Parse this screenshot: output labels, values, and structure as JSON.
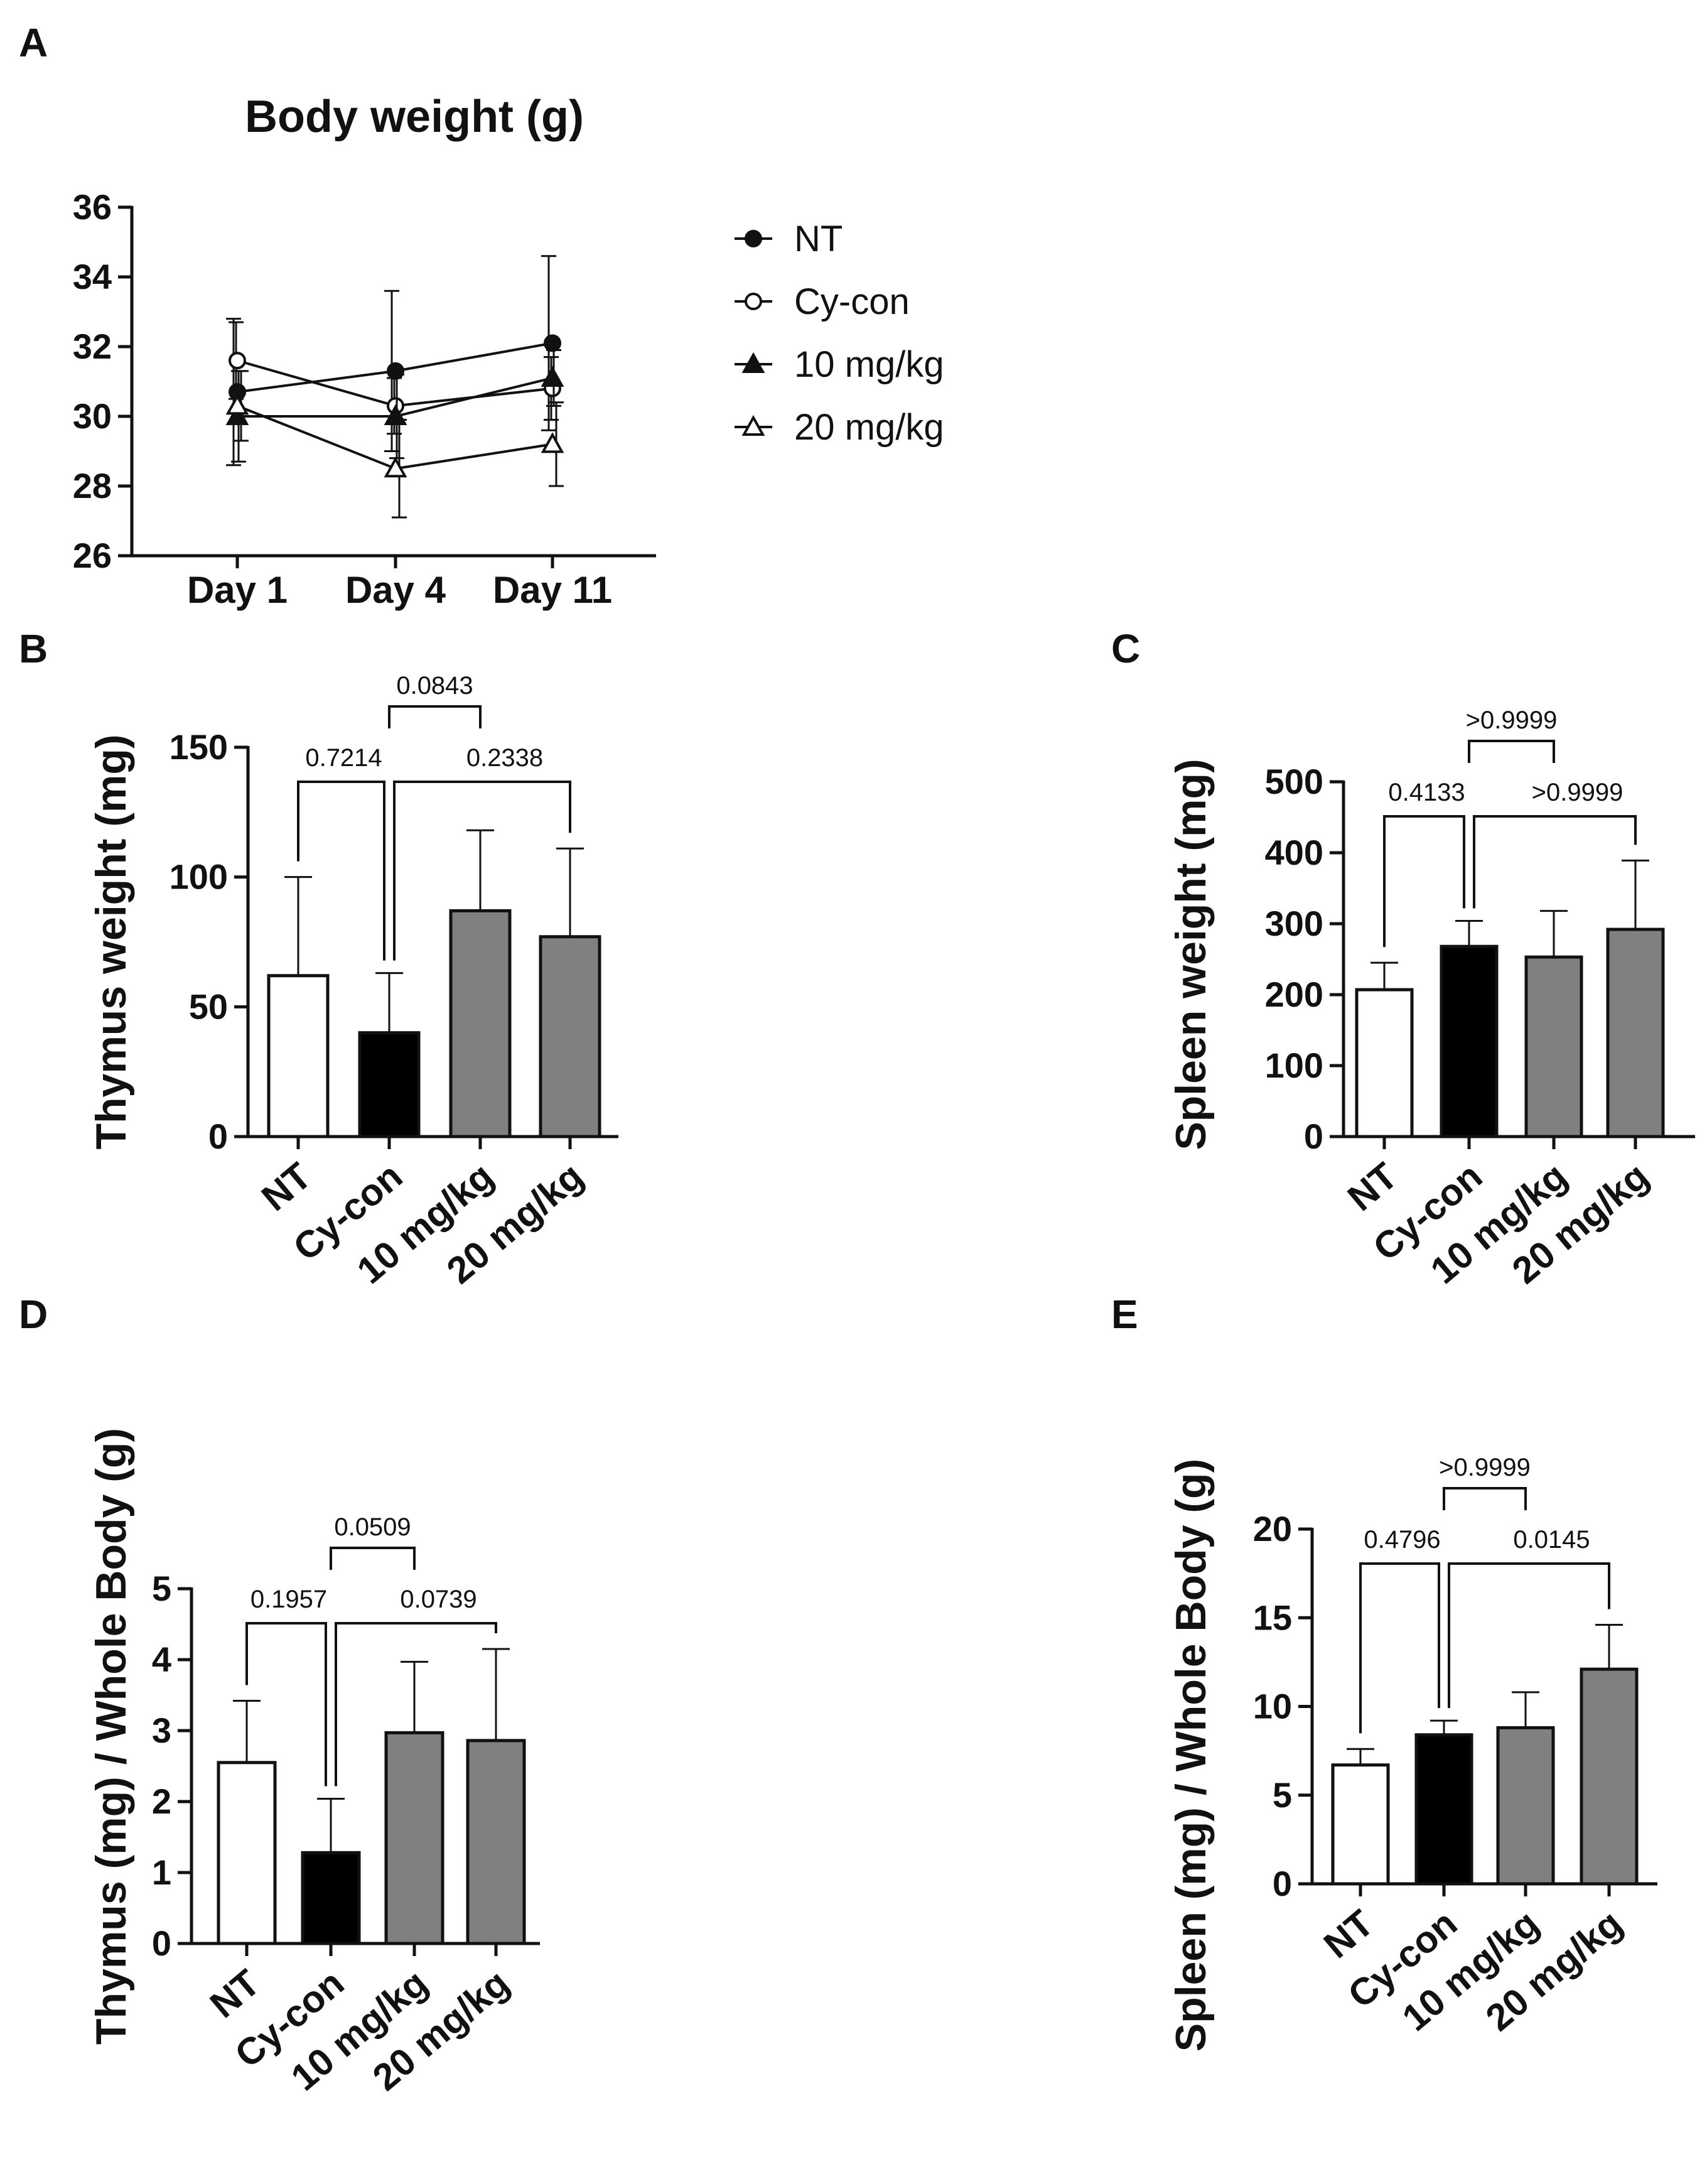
{
  "chart_data": [
    {
      "panel": "A",
      "type": "line",
      "title": "Body weight (g)",
      "xlabel": "",
      "ylabel": "",
      "categories": [
        "Day 1",
        "Day 4",
        "Day 11"
      ],
      "ylim": [
        26,
        36
      ],
      "yticks": [
        "26",
        "28",
        "30",
        "32",
        "34",
        "36"
      ],
      "legend_placement": "right",
      "series": [
        {
          "name": "NT",
          "marker": "filled-circle",
          "values": [
            30.7,
            31.3,
            32.1
          ],
          "errors": [
            2.1,
            2.3,
            2.5
          ]
        },
        {
          "name": "Cy-con",
          "marker": "open-circle",
          "values": [
            31.6,
            30.3,
            30.8
          ],
          "errors": [
            1.1,
            0.8,
            0.9
          ]
        },
        {
          "name": "10 mg/kg",
          "marker": "filled-triangle",
          "values": [
            30.0,
            30.0,
            31.1
          ],
          "errors": [
            1.3,
            1.2,
            0.8
          ]
        },
        {
          "name": "20 mg/kg",
          "marker": "open-triangle",
          "values": [
            30.3,
            28.5,
            29.2
          ],
          "errors": [
            1.0,
            1.4,
            1.2
          ]
        }
      ]
    },
    {
      "panel": "B",
      "type": "bar",
      "xlabel": "",
      "ylabel": "Thymus weight (mg)",
      "categories": [
        "NT",
        "Cy-con",
        "10 mg/kg",
        "20 mg/kg"
      ],
      "values": [
        62,
        40,
        87,
        77
      ],
      "errors": [
        38,
        23,
        31,
        34
      ],
      "ylim": [
        0,
        150
      ],
      "yticks": [
        "0",
        "50",
        "100",
        "150"
      ],
      "bar_colors": [
        "#ffffff",
        "#000000",
        "#808080",
        "#808080"
      ],
      "comparisons": [
        {
          "pair": [
            1,
            3
          ],
          "label": "0.0843"
        },
        {
          "pair": [
            0,
            1
          ],
          "label": "0.7214"
        },
        {
          "pair": [
            1,
            3
          ],
          "label": "0.2338"
        }
      ]
    },
    {
      "panel": "C",
      "type": "bar",
      "xlabel": "",
      "ylabel": "Spleen weight (mg)",
      "categories": [
        "NT",
        "Cy-con",
        "10 mg/kg",
        "20 mg/kg"
      ],
      "values": [
        207,
        268,
        253,
        292
      ],
      "errors": [
        38,
        36,
        65,
        97
      ],
      "ylim": [
        0,
        500
      ],
      "yticks": [
        "0",
        "100",
        "200",
        "300",
        "400",
        "500"
      ],
      "bar_colors": [
        "#ffffff",
        "#000000",
        "#808080",
        "#808080"
      ],
      "comparisons": [
        {
          "pair": [
            1,
            2
          ],
          "label": ">0.9999"
        },
        {
          "pair": [
            0,
            1
          ],
          "label": "0.4133"
        },
        {
          "pair": [
            1,
            3
          ],
          "label": ">0.9999"
        }
      ]
    },
    {
      "panel": "D",
      "type": "bar",
      "xlabel": "",
      "ylabel": "Thymus (mg) / Whole Body (g)",
      "categories": [
        "NT",
        "Cy-con",
        "10 mg/kg",
        "20 mg/kg"
      ],
      "values": [
        2.55,
        1.28,
        2.97,
        2.86
      ],
      "errors": [
        0.87,
        0.76,
        1.0,
        1.29
      ],
      "ylim": [
        0,
        5
      ],
      "yticks": [
        "0",
        "1",
        "2",
        "3",
        "4",
        "5"
      ],
      "bar_colors": [
        "#ffffff",
        "#000000",
        "#808080",
        "#808080"
      ],
      "comparisons": [
        {
          "pair": [
            1,
            2
          ],
          "label": "0.0509"
        },
        {
          "pair": [
            0,
            1
          ],
          "label": "0.1957"
        },
        {
          "pair": [
            1,
            3
          ],
          "label": "0.0739"
        }
      ]
    },
    {
      "panel": "E",
      "type": "bar",
      "xlabel": "",
      "ylabel": "Spleen (mg) / Whole Body (g)",
      "categories": [
        "NT",
        "Cy-con",
        "10 mg/kg",
        "20 mg/kg"
      ],
      "values": [
        6.7,
        8.4,
        8.8,
        12.1
      ],
      "errors": [
        0.9,
        0.8,
        2.0,
        2.5
      ],
      "ylim": [
        0,
        20
      ],
      "yticks": [
        "0",
        "5",
        "10",
        "15",
        "20"
      ],
      "bar_colors": [
        "#ffffff",
        "#000000",
        "#808080",
        "#808080"
      ],
      "comparisons": [
        {
          "pair": [
            1,
            2
          ],
          "label": ">0.9999"
        },
        {
          "pair": [
            0,
            1
          ],
          "label": "0.4796"
        },
        {
          "pair": [
            1,
            3
          ],
          "label": "0.0145"
        }
      ]
    }
  ]
}
